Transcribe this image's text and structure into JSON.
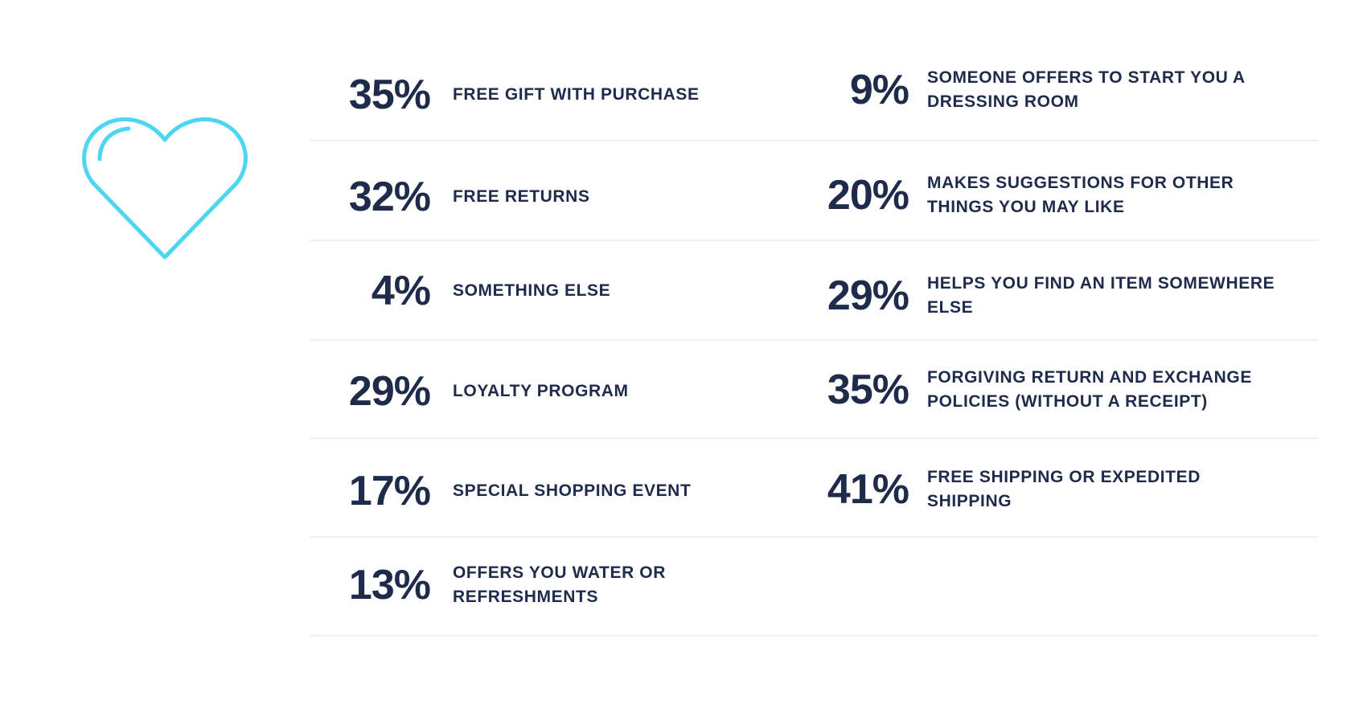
{
  "colors": {
    "text": "#1f2b4a",
    "heart": "#4dd6f2",
    "divider": "#eef0f3"
  },
  "icon": "heart-icon",
  "chart_data": {
    "type": "table",
    "columns": [
      {
        "rows": [
          {
            "value": "35%",
            "label": "FREE GIFT WITH PURCHASE"
          },
          {
            "value": "32%",
            "label": "FREE RETURNS"
          },
          {
            "value": "4%",
            "label": "SOMETHING ELSE"
          },
          {
            "value": "29%",
            "label": "LOYALTY PROGRAM"
          },
          {
            "value": "17%",
            "label": "SPECIAL SHOPPING EVENT"
          },
          {
            "value": "13%",
            "label": "OFFERS YOU WATER OR REFRESHMENTS"
          }
        ]
      },
      {
        "rows": [
          {
            "value": "9%",
            "label": "SOMEONE OFFERS TO START YOU A DRESSING ROOM"
          },
          {
            "value": "20%",
            "label": "MAKES SUGGESTIONS FOR OTHER THINGS YOU MAY LIKE"
          },
          {
            "value": "29%",
            "label": "HELPS YOU FIND AN ITEM SOMEWHERE ELSE"
          },
          {
            "value": "35%",
            "label": "FORGIVING RETURN AND EXCHANGE POLICIES (WITHOUT A RECEIPT)"
          },
          {
            "value": "41%",
            "label": "FREE SHIPPING OR EXPEDITED SHIPPING"
          }
        ]
      }
    ]
  }
}
